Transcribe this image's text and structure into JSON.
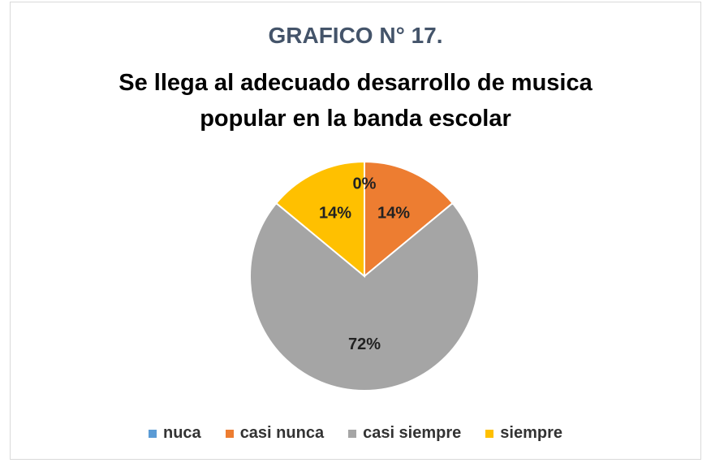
{
  "chart_data": {
    "type": "pie",
    "title": "GRAFICO N° 17.",
    "subtitle": "Se llega al adecuado desarrollo de musica popular en la banda escolar",
    "categories": [
      "nuca",
      "casi nunca",
      "casi siempre",
      "siempre"
    ],
    "values": [
      0,
      14,
      72,
      14
    ],
    "value_labels": [
      "0%",
      "14%",
      "72%",
      "14%"
    ],
    "colors": [
      "#5b9bd5",
      "#ed7d31",
      "#a5a5a5",
      "#ffc000"
    ],
    "legend": "bottom"
  }
}
